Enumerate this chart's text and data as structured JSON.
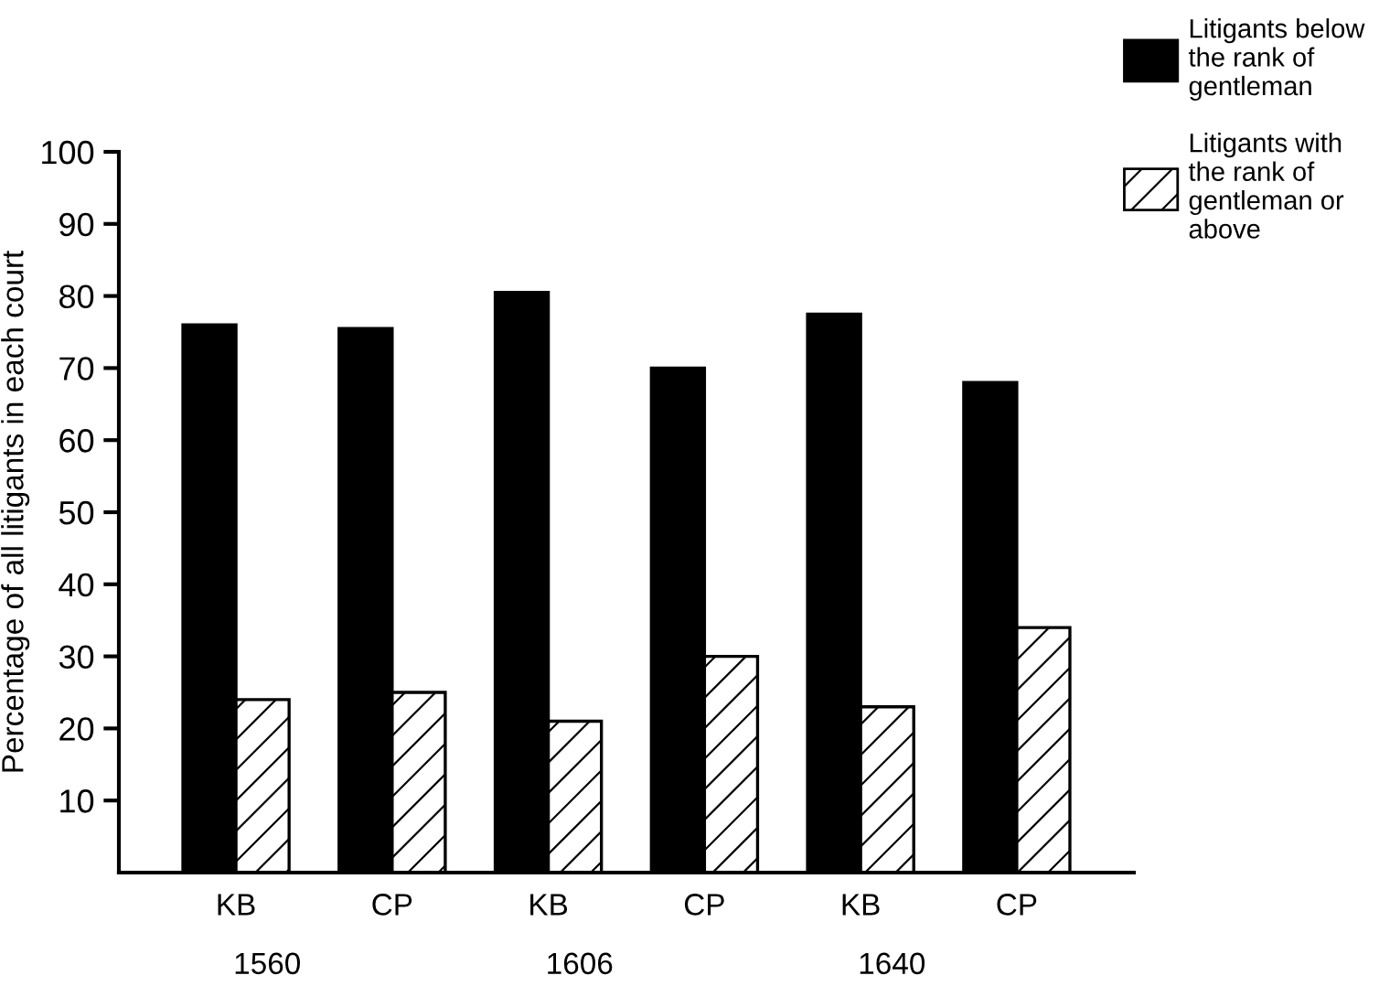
{
  "chart_data": {
    "type": "bar",
    "ylabel": "Percentage of all litigants in each court",
    "categories": [
      "KB",
      "CP",
      "KB",
      "CP",
      "KB",
      "CP"
    ],
    "series": [
      {
        "name": "Litigants below the rank of gentleman",
        "color": "#000000",
        "values": [
          76,
          75.5,
          80.5,
          70,
          77.5,
          68
        ]
      },
      {
        "name": "Litigants with the rank of gentleman or above",
        "color": "#000000",
        "values": [
          24,
          25,
          21,
          30,
          23,
          34
        ]
      }
    ],
    "annotations": [
      "1560",
      "1606",
      "1640"
    ],
    "ylim": [
      0,
      100
    ],
    "yticks": [
      10,
      20,
      30,
      40,
      50,
      60,
      70,
      80,
      90,
      100
    ],
    "grid": false,
    "legend": "top right"
  }
}
